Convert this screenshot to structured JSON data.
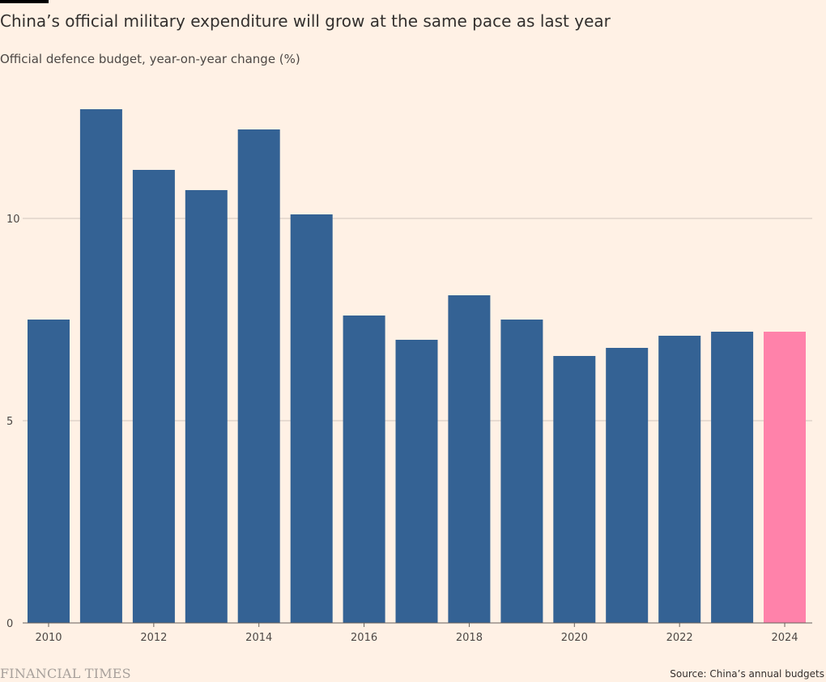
{
  "header": {
    "title": "China’s official military expenditure will grow at the same pace as last year",
    "subtitle": "Official defence budget, year-on-year change (%)"
  },
  "footer": {
    "logo": "FINANCIAL TIMES",
    "source": "Source: China’s annual budgets"
  },
  "colors": {
    "background": "#FFF1E5",
    "bar": "#346294",
    "highlight": "#FF82AA",
    "gridline": "#CFC5BD",
    "axis": "#66605C",
    "text": "#33302E"
  },
  "chart_data": {
    "type": "bar",
    "title": "China’s official military expenditure will grow at the same pace as last year",
    "subtitle": "Official defence budget, year-on-year change (%)",
    "categories": [
      "2010",
      "2011",
      "2012",
      "2013",
      "2014",
      "2015",
      "2016",
      "2017",
      "2018",
      "2019",
      "2020",
      "2021",
      "2022",
      "2023",
      "2024"
    ],
    "values": [
      7.5,
      12.7,
      11.2,
      10.7,
      12.2,
      10.1,
      7.6,
      7.0,
      8.1,
      7.5,
      6.6,
      6.8,
      7.1,
      7.2,
      7.2
    ],
    "highlight_category": "2024",
    "x_tick_labels": [
      "2010",
      "2012",
      "2014",
      "2016",
      "2018",
      "2020",
      "2022",
      "2024"
    ],
    "y_ticks": [
      0,
      5,
      10
    ],
    "ylim": [
      0,
      13
    ],
    "grid": true,
    "xlabel": "",
    "ylabel": ""
  }
}
